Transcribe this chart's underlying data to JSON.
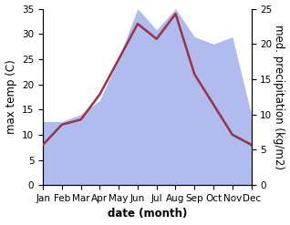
{
  "months": [
    "Jan",
    "Feb",
    "Mar",
    "Apr",
    "May",
    "Jun",
    "Jul",
    "Aug",
    "Sep",
    "Oct",
    "Nov",
    "Dec"
  ],
  "temperature": [
    8,
    12,
    13,
    18,
    25,
    32,
    29,
    34,
    22,
    16,
    10,
    8
  ],
  "precipitation": [
    9,
    9,
    10,
    12,
    18,
    25,
    22,
    25,
    21,
    20,
    21,
    10
  ],
  "temp_color": "#993344",
  "precip_color": "#b0bcee",
  "temp_ylim": [
    0,
    35
  ],
  "precip_ylim": [
    0,
    25
  ],
  "xlabel": "date (month)",
  "ylabel_left": "max temp (C)",
  "ylabel_right": "med. precipitation (kg/m2)",
  "background_color": "#ffffff",
  "label_fontsize": 8.5,
  "tick_fontsize": 7.5
}
